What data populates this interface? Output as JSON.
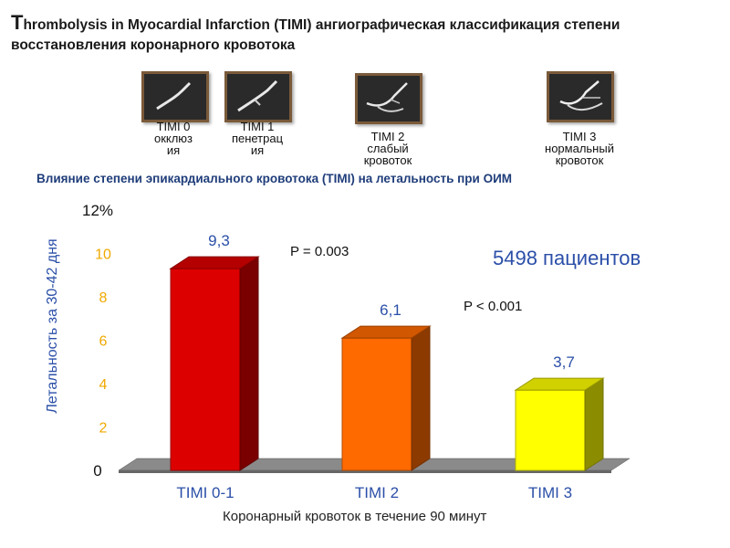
{
  "title_first": "T",
  "title_rest": "hrombolysis in Myocardial Infarction (TIMI) ангиографическая классификация степени восстановления  коронарного кровотока",
  "thumbs": [
    {
      "line1": "TIMI 0",
      "line2": "окклюз",
      "line3": "ия"
    },
    {
      "line1": "TIMI 1",
      "line2": "пенетрац",
      "line3": "ия"
    },
    {
      "line1": "TIMI 2",
      "line2": "слабый",
      "line3": "кровоток"
    },
    {
      "line1": "TIMI 3",
      "line2": "нормальный",
      "line3": "кровоток"
    }
  ],
  "chart_subtitle": "Влияние степени эпикардиального кровотока (TIMI) на летальность при ОИМ",
  "p_value_1": "P = 0.003",
  "p_value_2": "P < 0.001",
  "patients": "5498 пациентов",
  "chart_data": {
    "type": "bar",
    "categories": [
      "TIMI 0-1",
      "TIMI 2",
      "TIMI 3"
    ],
    "values": [
      9.3,
      6.1,
      3.7
    ],
    "value_labels": [
      "9,3",
      "6,1",
      "3,7"
    ],
    "bar_colors": [
      "#dd0000",
      "#ff6a00",
      "#ffff00"
    ],
    "ylabel": "Летальность  за 30-42 дня",
    "xlabel": "Коронарный кровоток в течение 90 минут",
    "yticks": [
      "0",
      "2",
      "4",
      "6",
      "8",
      "10",
      "12%"
    ],
    "ytick_values": [
      0,
      2,
      4,
      6,
      8,
      10,
      12
    ],
    "ylim": [
      0,
      12
    ],
    "grid": false
  }
}
